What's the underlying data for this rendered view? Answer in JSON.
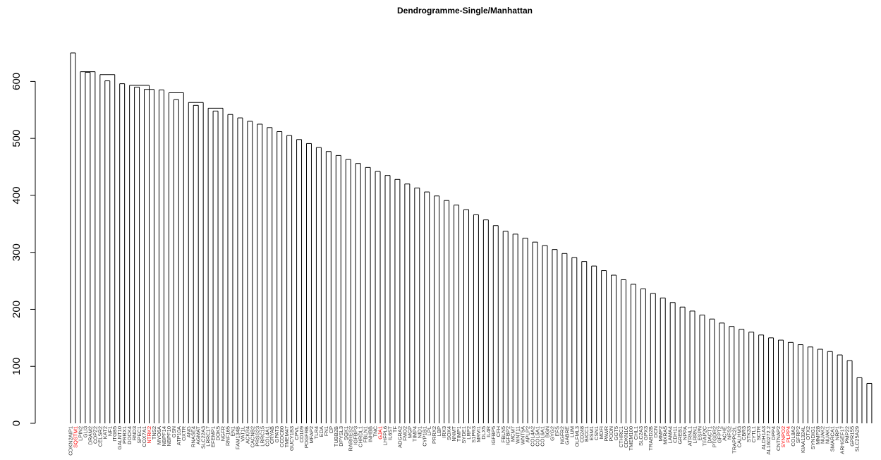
{
  "chart_data": {
    "type": "dendrogram",
    "title": "Dendrogramme-Single/Manhattan",
    "xlabel": "",
    "ylabel": "",
    "ylim": [
      0,
      650
    ],
    "yticks": [
      0,
      100,
      200,
      300,
      400,
      500,
      600
    ],
    "grid": false,
    "highlight_color": "#ff0000",
    "line_color": "#000000",
    "leaves": [
      {
        "label": "CDKN2AIP1",
        "highlight": false
      },
      {
        "label": "SQSTM1",
        "highlight": true
      },
      {
        "label": "LPIN2",
        "highlight": false
      },
      {
        "label": "GLI3",
        "highlight": false
      },
      {
        "label": "DRAM2",
        "highlight": false
      },
      {
        "label": "COPZ2",
        "highlight": false
      },
      {
        "label": "CELSR2",
        "highlight": false
      },
      {
        "label": "KAT2",
        "highlight": false
      },
      {
        "label": "NF1",
        "highlight": false
      },
      {
        "label": "ITGB5",
        "highlight": false
      },
      {
        "label": "GALNT10",
        "highlight": false
      },
      {
        "label": "PRRX1",
        "highlight": false
      },
      {
        "label": "DOCK4",
        "highlight": false
      },
      {
        "label": "RND3",
        "highlight": false
      },
      {
        "label": "SPEC1",
        "highlight": false
      },
      {
        "label": "COX7A1",
        "highlight": false
      },
      {
        "label": "NTRK2",
        "highlight": true
      },
      {
        "label": "TNS2",
        "highlight": false
      },
      {
        "label": "MYO6A",
        "highlight": false
      },
      {
        "label": "NBPF14",
        "highlight": false
      },
      {
        "label": "NBPF10",
        "highlight": false
      },
      {
        "label": "GSN",
        "highlight": false
      },
      {
        "label": "ATP10A",
        "highlight": false
      },
      {
        "label": "OXTR",
        "highlight": false
      },
      {
        "label": "ANG",
        "highlight": false
      },
      {
        "label": "RNASE4",
        "highlight": false
      },
      {
        "label": "AGMAT",
        "highlight": false
      },
      {
        "label": "SLC22A3",
        "highlight": false
      },
      {
        "label": "LRRC17",
        "highlight": false
      },
      {
        "label": "EFEMP1",
        "highlight": false
      },
      {
        "label": "DOK5",
        "highlight": false
      },
      {
        "label": "NGFR",
        "highlight": false
      },
      {
        "label": "RNF165",
        "highlight": false
      },
      {
        "label": "EN1",
        "highlight": false
      },
      {
        "label": "FAM134B",
        "highlight": false
      },
      {
        "label": "VAT1L",
        "highlight": false
      },
      {
        "label": "ACKR4",
        "highlight": false
      },
      {
        "label": "CACNB2",
        "highlight": false
      },
      {
        "label": "PRSS23",
        "highlight": false
      },
      {
        "label": "LRRC15",
        "highlight": false
      },
      {
        "label": "COL4A1",
        "highlight": false
      },
      {
        "label": "CRYAB",
        "highlight": false
      },
      {
        "label": "GPAT3",
        "highlight": false
      },
      {
        "label": "CCDC80",
        "highlight": false
      },
      {
        "label": "TMEM47",
        "highlight": false
      },
      {
        "label": "GUCY1B3",
        "highlight": false
      },
      {
        "label": "CPVL",
        "highlight": false
      },
      {
        "label": "CD109",
        "highlight": false
      },
      {
        "label": "PDGFRB",
        "highlight": false
      },
      {
        "label": "MFAP2",
        "highlight": false
      },
      {
        "label": "TLR4",
        "highlight": false
      },
      {
        "label": "EDA",
        "highlight": false
      },
      {
        "label": "FN1",
        "highlight": false
      },
      {
        "label": "CP",
        "highlight": false
      },
      {
        "label": "TUBB2B",
        "highlight": false
      },
      {
        "label": "DPYSL3",
        "highlight": false
      },
      {
        "label": "SGK1",
        "highlight": false
      },
      {
        "label": "RARRES2",
        "highlight": false
      },
      {
        "label": "IGFBP3",
        "highlight": false
      },
      {
        "label": "CHRDL1",
        "highlight": false
      },
      {
        "label": "FBLN1",
        "highlight": false
      },
      {
        "label": "INHBB",
        "highlight": false
      },
      {
        "label": "TNC",
        "highlight": false
      },
      {
        "label": "GJA1",
        "highlight": true
      },
      {
        "label": "LHFPL6",
        "highlight": false
      },
      {
        "label": "IL6ST",
        "highlight": false
      },
      {
        "label": "TF",
        "highlight": false
      },
      {
        "label": "ADGRA2",
        "highlight": false
      },
      {
        "label": "FMO2",
        "highlight": false
      },
      {
        "label": "MGP",
        "highlight": false
      },
      {
        "label": "TIMP4",
        "highlight": false
      },
      {
        "label": "NID1",
        "highlight": false
      },
      {
        "label": "CYP1B1",
        "highlight": false
      },
      {
        "label": "LPL",
        "highlight": false
      },
      {
        "label": "PRRX2",
        "highlight": false
      },
      {
        "label": "LBP",
        "highlight": false
      },
      {
        "label": "IRX3",
        "highlight": false
      },
      {
        "label": "SOX4",
        "highlight": false
      },
      {
        "label": "NNMT",
        "highlight": false
      },
      {
        "label": "TIMP1",
        "highlight": false
      },
      {
        "label": "SYDE1",
        "highlight": false
      },
      {
        "label": "LRP2",
        "highlight": false
      },
      {
        "label": "S1PR3",
        "highlight": false
      },
      {
        "label": "MRVI1",
        "highlight": false
      },
      {
        "label": "DLX5",
        "highlight": false
      },
      {
        "label": "IL4R",
        "highlight": false
      },
      {
        "label": "IGFBP5",
        "highlight": false
      },
      {
        "label": "CFH",
        "highlight": false
      },
      {
        "label": "FBLN5",
        "highlight": false
      },
      {
        "label": "IGFBP2",
        "highlight": false
      },
      {
        "label": "MCM7",
        "highlight": false
      },
      {
        "label": "WNT11",
        "highlight": false
      },
      {
        "label": "WNT5A",
        "highlight": false
      },
      {
        "label": "APLP2",
        "highlight": false
      },
      {
        "label": "COL4A2",
        "highlight": false
      },
      {
        "label": "COL5A1",
        "highlight": false
      },
      {
        "label": "COL6A1",
        "highlight": false
      },
      {
        "label": "BGN",
        "highlight": false
      },
      {
        "label": "GYG2",
        "highlight": false
      },
      {
        "label": "EFS",
        "highlight": false
      },
      {
        "label": "NGFR2",
        "highlight": false
      },
      {
        "label": "GABRE",
        "highlight": false
      },
      {
        "label": "LUM",
        "highlight": false
      },
      {
        "label": "OLFML3",
        "highlight": false
      },
      {
        "label": "CD248",
        "highlight": false
      },
      {
        "label": "BICC1",
        "highlight": false
      },
      {
        "label": "ESM1",
        "highlight": false
      },
      {
        "label": "CSN1",
        "highlight": false
      },
      {
        "label": "MDFI",
        "highlight": false
      },
      {
        "label": "PAWR",
        "highlight": false
      },
      {
        "label": "PODN",
        "highlight": false
      },
      {
        "label": "GGT5",
        "highlight": false
      },
      {
        "label": "CTHRC1",
        "highlight": false
      },
      {
        "label": "CDKN1C",
        "highlight": false
      },
      {
        "label": "TMEM100",
        "highlight": false
      },
      {
        "label": "CHL1",
        "highlight": false
      },
      {
        "label": "SLC2A3",
        "highlight": false
      },
      {
        "label": "GPX3",
        "highlight": false
      },
      {
        "label": "TRABD2B",
        "highlight": false
      },
      {
        "label": "DCN",
        "highlight": false
      },
      {
        "label": "MMP2",
        "highlight": false
      },
      {
        "label": "MXRA5",
        "highlight": false
      },
      {
        "label": "LAMA4",
        "highlight": false
      },
      {
        "label": "CDH11",
        "highlight": false
      },
      {
        "label": "GREB1",
        "highlight": false
      },
      {
        "label": "NPPA",
        "highlight": false
      },
      {
        "label": "ATRNL1",
        "highlight": false
      },
      {
        "label": "LRRN1",
        "highlight": false
      },
      {
        "label": "ESPN",
        "highlight": false
      },
      {
        "label": "TFAP2C",
        "highlight": false
      },
      {
        "label": "DACT1",
        "highlight": false
      },
      {
        "label": "PTGDR2",
        "highlight": false
      },
      {
        "label": "GFPT2",
        "highlight": false
      },
      {
        "label": "ACHE",
        "highlight": false
      },
      {
        "label": "NFS2",
        "highlight": false
      },
      {
        "label": "TRAPPC2L",
        "highlight": false
      },
      {
        "label": "CALHM3",
        "highlight": false
      },
      {
        "label": "CBR3",
        "highlight": false
      },
      {
        "label": "STK33",
        "highlight": false
      },
      {
        "label": "CYTL1",
        "highlight": false
      },
      {
        "label": "SCTR",
        "highlight": false
      },
      {
        "label": "ALDH1A3",
        "highlight": false
      },
      {
        "label": "AL160272.2",
        "highlight": false
      },
      {
        "label": "DPP4",
        "highlight": false
      },
      {
        "label": "CNTNAP2",
        "highlight": false
      },
      {
        "label": "SYNPO2",
        "highlight": true
      },
      {
        "label": "PLPP4",
        "highlight": true
      },
      {
        "label": "COL8A2",
        "highlight": false
      },
      {
        "label": "SFRP2",
        "highlight": false
      },
      {
        "label": "KIAA1324L",
        "highlight": false
      },
      {
        "label": "OTX2",
        "highlight": false
      },
      {
        "label": "SYNDIG1",
        "highlight": false
      },
      {
        "label": "MMP28",
        "highlight": false
      },
      {
        "label": "NUAK2",
        "highlight": false
      },
      {
        "label": "NUAK1",
        "highlight": false
      },
      {
        "label": "SMARCA1",
        "highlight": false
      },
      {
        "label": "NRP1",
        "highlight": false
      },
      {
        "label": "ARHGEF17",
        "highlight": false
      },
      {
        "label": "PMP22",
        "highlight": false
      },
      {
        "label": "GPR155",
        "highlight": false
      },
      {
        "label": "SLC25A29",
        "highlight": false
      }
    ],
    "merges": [
      [
        0,
        1,
        650
      ],
      [
        2,
        5,
        617
      ],
      [
        3,
        4,
        616
      ],
      [
        6,
        9,
        612
      ],
      [
        7,
        8,
        601
      ],
      [
        10,
        11,
        596
      ],
      [
        12,
        16,
        593
      ],
      [
        13,
        14,
        590
      ],
      [
        15,
        17,
        586
      ],
      [
        18,
        19,
        585
      ],
      [
        20,
        23,
        580
      ],
      [
        21,
        22,
        568
      ],
      [
        24,
        27,
        563
      ],
      [
        25,
        26,
        558
      ],
      [
        28,
        31,
        553
      ],
      [
        29,
        30,
        548
      ],
      [
        32,
        33,
        542
      ],
      [
        34,
        35,
        536
      ],
      [
        36,
        37,
        530
      ],
      [
        38,
        39,
        525
      ],
      [
        40,
        41,
        519
      ],
      [
        42,
        43,
        512
      ],
      [
        44,
        45,
        505
      ],
      [
        46,
        47,
        498
      ],
      [
        48,
        49,
        491
      ],
      [
        50,
        51,
        484
      ],
      [
        52,
        53,
        477
      ],
      [
        54,
        55,
        470
      ],
      [
        56,
        57,
        463
      ],
      [
        58,
        59,
        456
      ],
      [
        60,
        61,
        449
      ],
      [
        62,
        63,
        442
      ],
      [
        64,
        65,
        435
      ],
      [
        66,
        67,
        428
      ],
      [
        68,
        69,
        420
      ],
      [
        70,
        71,
        413
      ],
      [
        72,
        73,
        406
      ],
      [
        74,
        75,
        399
      ],
      [
        76,
        77,
        391
      ],
      [
        78,
        79,
        383
      ],
      [
        80,
        81,
        375
      ],
      [
        82,
        83,
        366
      ],
      [
        84,
        85,
        357
      ],
      [
        86,
        87,
        347
      ],
      [
        88,
        89,
        337
      ],
      [
        90,
        91,
        332
      ],
      [
        92,
        93,
        325
      ],
      [
        94,
        95,
        318
      ],
      [
        96,
        97,
        312
      ],
      [
        98,
        99,
        305
      ],
      [
        100,
        101,
        298
      ],
      [
        102,
        103,
        291
      ],
      [
        104,
        105,
        284
      ],
      [
        106,
        107,
        276
      ],
      [
        108,
        109,
        268
      ],
      [
        110,
        111,
        260
      ],
      [
        112,
        113,
        252
      ],
      [
        114,
        115,
        244
      ],
      [
        116,
        117,
        236
      ],
      [
        118,
        119,
        228
      ],
      [
        120,
        121,
        220
      ],
      [
        122,
        123,
        212
      ],
      [
        124,
        125,
        204
      ],
      [
        126,
        127,
        197
      ],
      [
        128,
        129,
        190
      ],
      [
        130,
        131,
        183
      ],
      [
        132,
        133,
        176
      ],
      [
        134,
        135,
        170
      ],
      [
        136,
        137,
        165
      ],
      [
        138,
        139,
        160
      ],
      [
        140,
        141,
        155
      ],
      [
        142,
        143,
        150
      ],
      [
        144,
        145,
        146
      ],
      [
        146,
        147,
        142
      ],
      [
        148,
        149,
        138
      ],
      [
        150,
        151,
        134
      ],
      [
        152,
        153,
        130
      ],
      [
        154,
        155,
        126
      ],
      [
        156,
        157,
        120
      ],
      [
        158,
        159,
        110
      ],
      [
        160,
        161,
        80
      ],
      [
        162,
        163,
        70
      ]
    ]
  }
}
